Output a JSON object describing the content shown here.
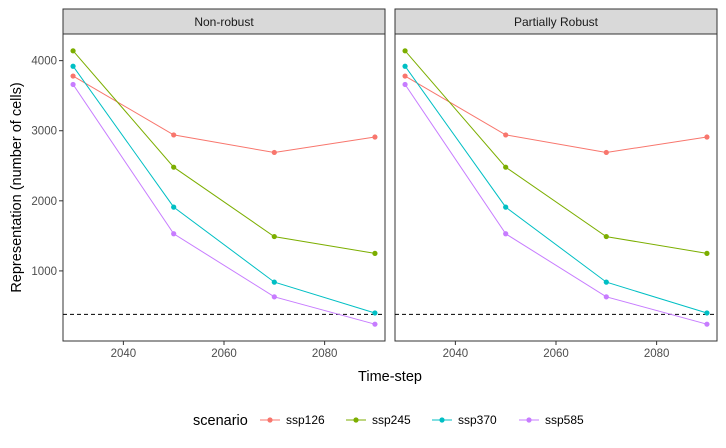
{
  "chart_data": {
    "type": "line",
    "facets": [
      "Non-robust",
      "Partially Robust"
    ],
    "x": [
      2030,
      2050,
      2070,
      2090
    ],
    "xlabel": "Time-step",
    "ylabel": "Representation (number of cells)",
    "xlim": [
      2028,
      2092
    ],
    "ylim": [
      0,
      4380
    ],
    "yticks": [
      1000,
      2000,
      3000,
      4000
    ],
    "xticks": [
      2040,
      2060,
      2080
    ],
    "reference_line": {
      "y": 380,
      "style": "dashed"
    },
    "legend": {
      "title": "scenario",
      "placement": "bottom"
    },
    "series": [
      {
        "name": "ssp126",
        "color": "#F8766D",
        "values": [
          3780,
          2940,
          2690,
          2910
        ]
      },
      {
        "name": "ssp245",
        "color": "#7CAE00",
        "values": [
          4140,
          2480,
          1490,
          1250
        ]
      },
      {
        "name": "ssp370",
        "color": "#00BFC4",
        "values": [
          3920,
          1910,
          840,
          400
        ]
      },
      {
        "name": "ssp585",
        "color": "#C77CFF",
        "values": [
          3660,
          1530,
          630,
          240
        ]
      }
    ]
  }
}
